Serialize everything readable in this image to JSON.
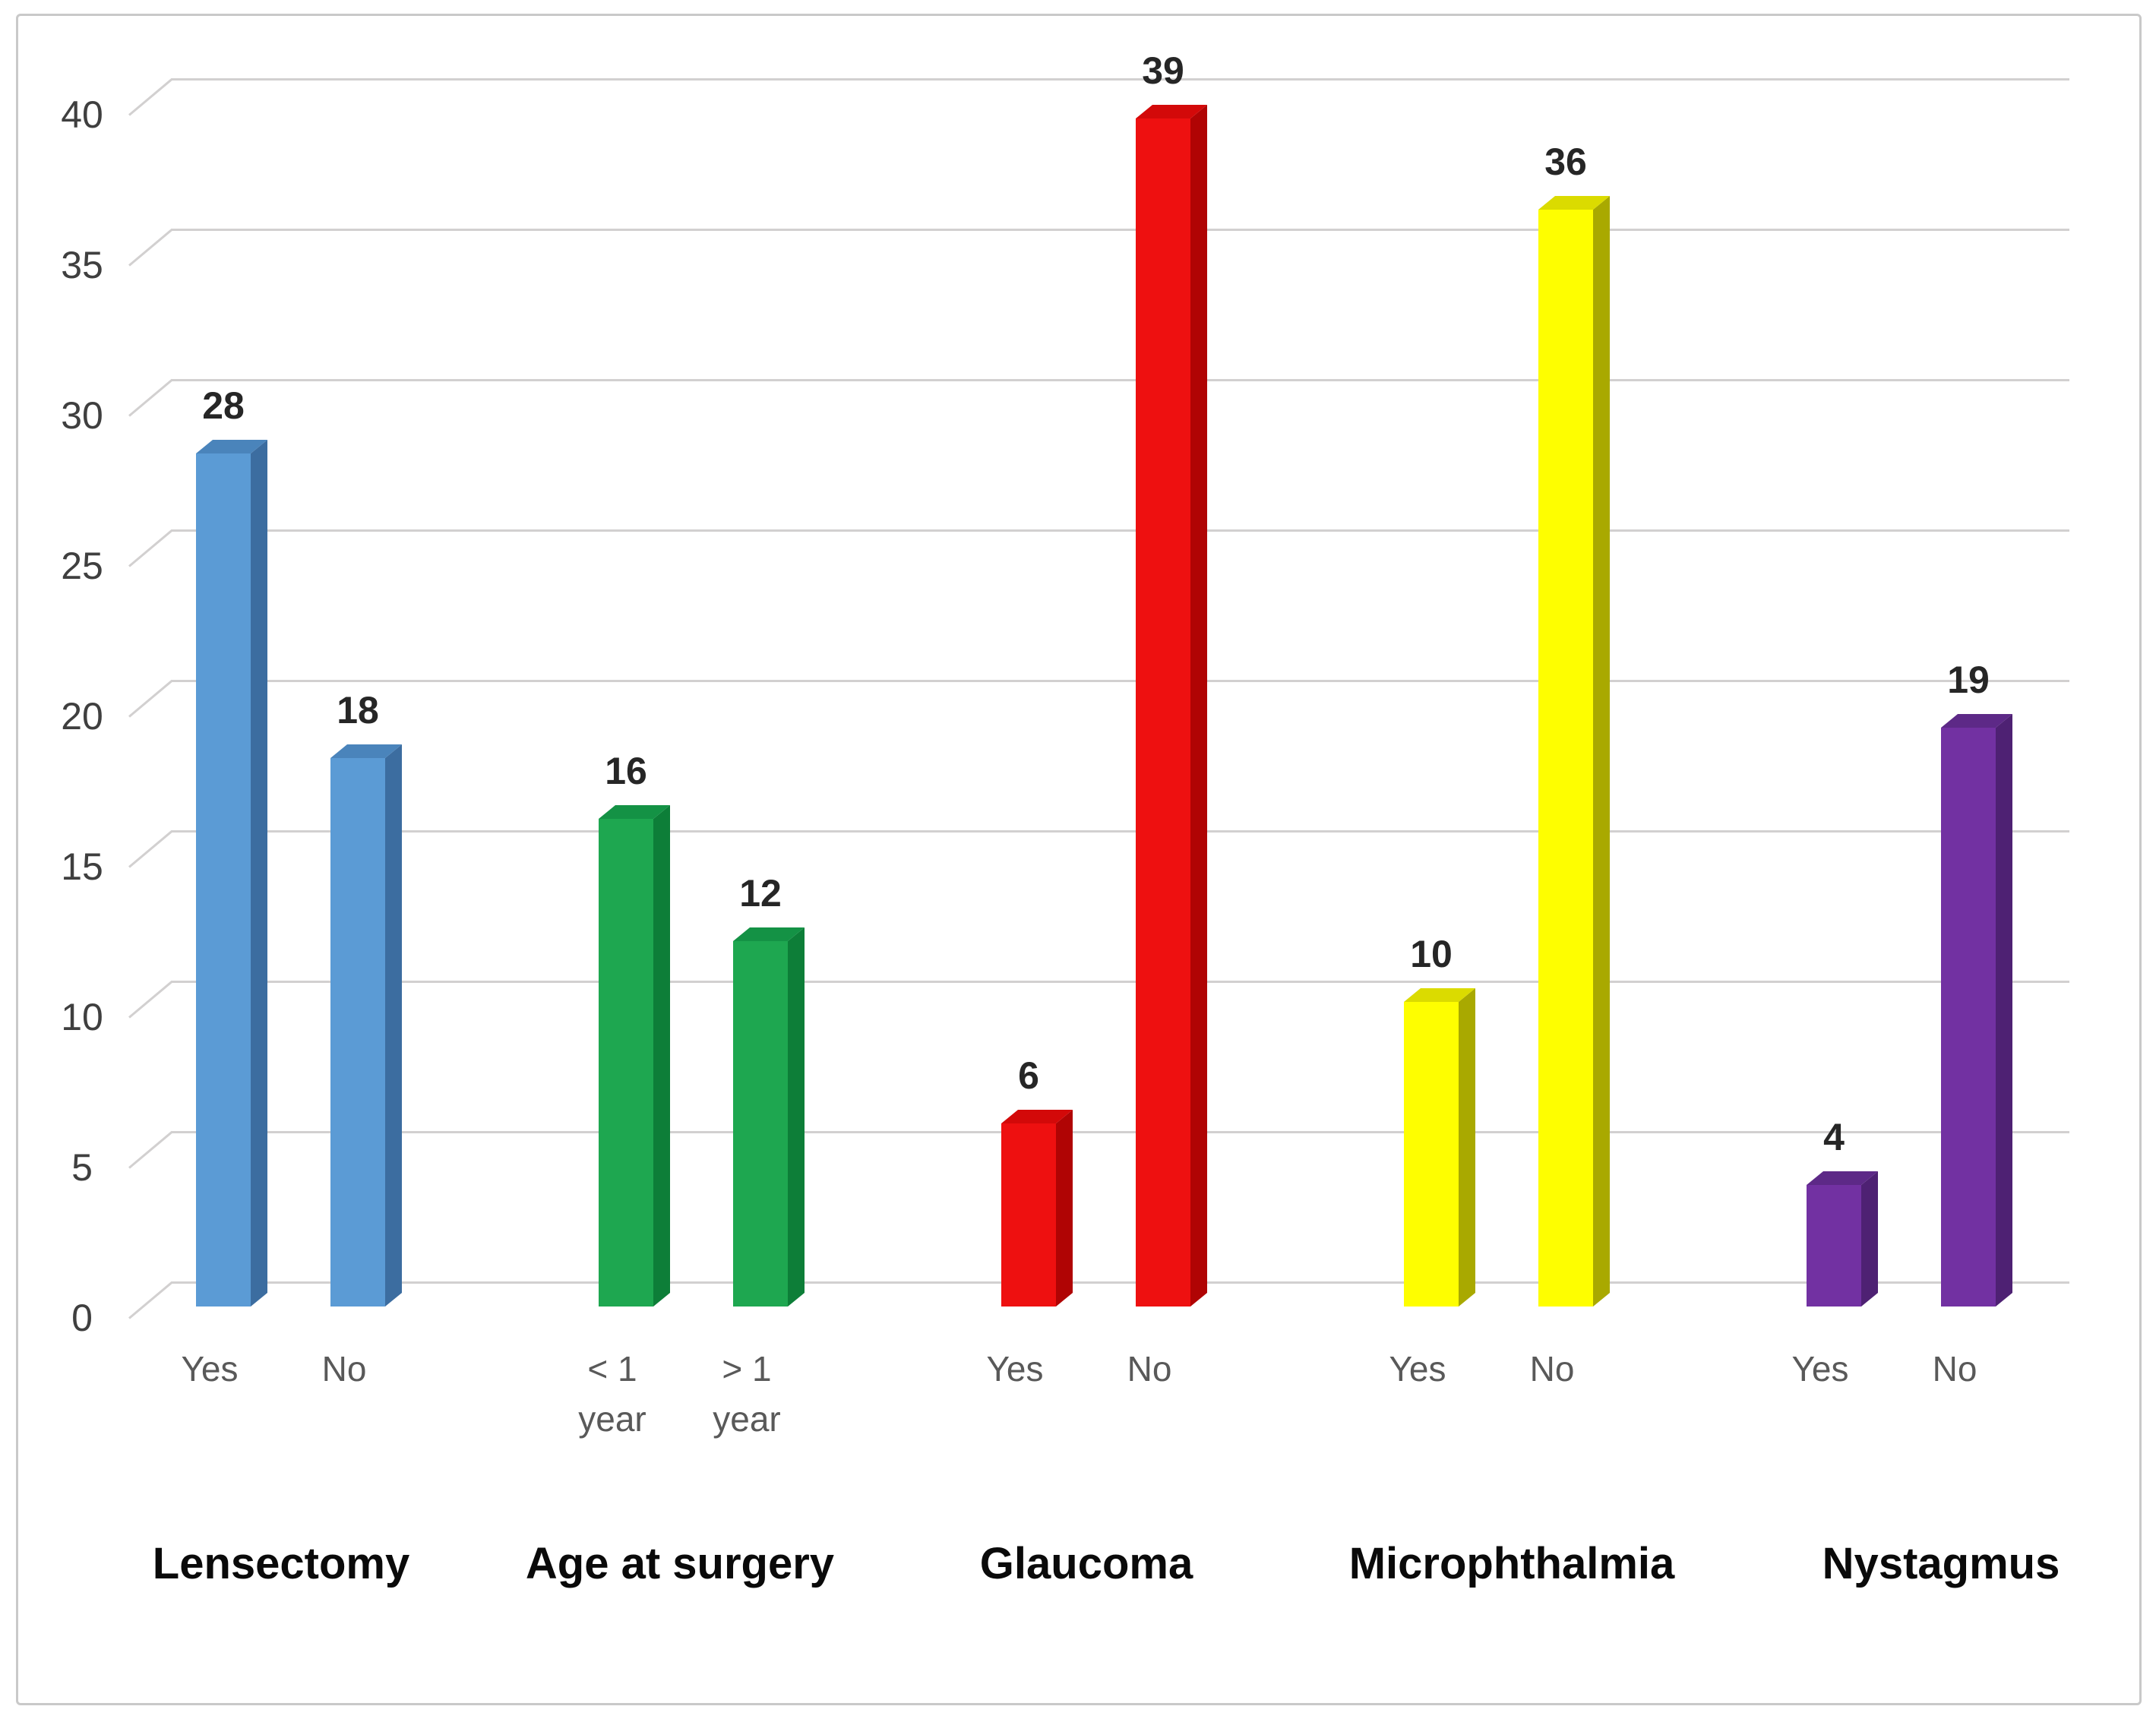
{
  "chart_data": {
    "type": "bar",
    "style": "3d-columns",
    "title": "",
    "xlabel": "",
    "ylabel": "",
    "ylim": [
      0,
      40
    ],
    "yticks": [
      "0",
      "5",
      "10",
      "15",
      "20",
      "25",
      "30",
      "35",
      "40"
    ],
    "grid": true,
    "legend": false,
    "background": "#ffffff",
    "border_color": "#c9c9c9",
    "gridline_color": "#d2d0d0",
    "axis_text_color": "#3f3f3f",
    "tick_text_color": "#595959",
    "value_text_color": "#262626",
    "category_text_color": "#0a0a0a",
    "groups": [
      {
        "category": "Lensectomy",
        "color_name": "blue",
        "colors": {
          "front": "#5B9BD5",
          "side": "#3C6DA0",
          "top": "#4A84BB"
        },
        "bars": [
          {
            "tick": "Yes",
            "tick_lines": [
              "Yes"
            ],
            "value": 28
          },
          {
            "tick": "No",
            "tick_lines": [
              "No"
            ],
            "value": 18
          }
        ]
      },
      {
        "category": "Age at surgery",
        "color_name": "green",
        "colors": {
          "front": "#1EA750",
          "side": "#0D7E38",
          "top": "#149245"
        },
        "bars": [
          {
            "tick": "< 1 year",
            "tick_lines": [
              "< 1",
              "year"
            ],
            "value": 16
          },
          {
            "tick": "> 1 year",
            "tick_lines": [
              "> 1",
              "year"
            ],
            "value": 12
          }
        ]
      },
      {
        "category": "Glaucoma",
        "color_name": "red",
        "colors": {
          "front": "#EE1010",
          "side": "#B00404",
          "top": "#D30909"
        },
        "bars": [
          {
            "tick": "Yes",
            "tick_lines": [
              "Yes"
            ],
            "value": 6
          },
          {
            "tick": "No",
            "tick_lines": [
              "No"
            ],
            "value": 39
          }
        ]
      },
      {
        "category": "Microphthalmia",
        "color_name": "yellow",
        "colors": {
          "front": "#FEFE00",
          "side": "#A9A900",
          "top": "#DBDB00"
        },
        "bars": [
          {
            "tick": "Yes",
            "tick_lines": [
              "Yes"
            ],
            "value": 10
          },
          {
            "tick": "No",
            "tick_lines": [
              "No"
            ],
            "value": 36
          }
        ]
      },
      {
        "category": "Nystagmus",
        "color_name": "purple",
        "colors": {
          "front": "#7231A2",
          "side": "#4E2173",
          "top": "#5D2987"
        },
        "bars": [
          {
            "tick": "Yes",
            "tick_lines": [
              "Yes"
            ],
            "value": 4
          },
          {
            "tick": "No",
            "tick_lines": [
              "No"
            ],
            "value": 19
          }
        ]
      }
    ]
  }
}
